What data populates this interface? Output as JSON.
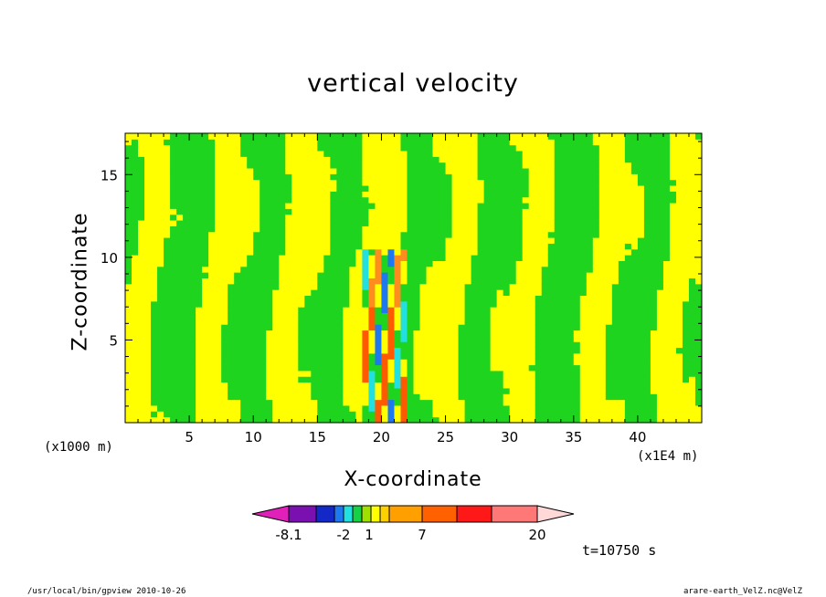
{
  "chart_data": {
    "type": "heatmap",
    "title": "vertical velocity",
    "xlabel": "X-coordinate",
    "ylabel": "Z-coordinate",
    "x_unit_note": "(x1000 m)",
    "x_scale_note": "(x1E4 m)",
    "xlim": [
      0,
      45
    ],
    "ylim": [
      0,
      17.5
    ],
    "x_ticks": [
      5,
      10,
      15,
      20,
      25,
      30,
      35,
      40
    ],
    "y_ticks": [
      5,
      10,
      15
    ],
    "colorbar": {
      "labels": [
        "-8.1",
        "-2",
        "1",
        "7",
        "20"
      ],
      "colors": [
        "#e020b8",
        "#7a10b0",
        "#1428c8",
        "#1e78f0",
        "#22e0e0",
        "#16d048",
        "#a0e000",
        "#ffff00",
        "#ffd000",
        "#ffa000",
        "#ff6000",
        "#ff1818",
        "#ff7878",
        "#ffb8b8",
        "#ffd8d8"
      ]
    },
    "contour_colors": {
      "negative_small": "#1ed41e",
      "positive_small": "#ffff00",
      "strong_up": "#ff8c1e",
      "strong_up2": "#ff5a00",
      "strong_down": "#22e0e0",
      "strong_down2": "#1e78f0"
    }
  },
  "annotations": {
    "time": "t=10750 s",
    "footer_left": "/usr/local/bin/gpview  2010-10-26",
    "footer_right": "arare-earth_VelZ.nc@VelZ"
  }
}
